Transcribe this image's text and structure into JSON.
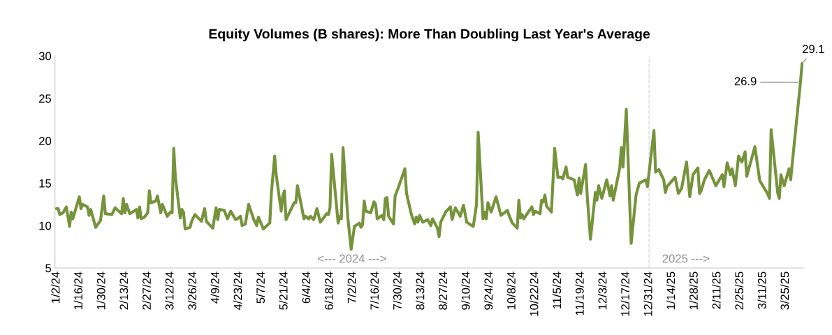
{
  "chart_data": {
    "type": "line",
    "title": "Equity Volumes (B shares): More Than Doubling Last Year's Average",
    "x": [
      "2024-01-02",
      "2024-01-03",
      "2024-01-04",
      "2024-01-06",
      "2024-01-08",
      "2024-01-10",
      "2024-01-11",
      "2024-01-12",
      "2024-01-16",
      "2024-01-17",
      "2024-01-18",
      "2024-01-21",
      "2024-01-22",
      "2024-01-23",
      "2024-01-26",
      "2024-01-29",
      "2024-01-31",
      "2024-02-01",
      "2024-02-05",
      "2024-02-07",
      "2024-02-11",
      "2024-02-12",
      "2024-02-13",
      "2024-02-14",
      "2024-02-16",
      "2024-02-20",
      "2024-02-21",
      "2024-02-22",
      "2024-02-23",
      "2024-02-25",
      "2024-02-27",
      "2024-02-28",
      "2024-02-29",
      "2024-03-03",
      "2024-03-04",
      "2024-03-06",
      "2024-03-07",
      "2024-03-10",
      "2024-03-12",
      "2024-03-13",
      "2024-03-14",
      "2024-03-15",
      "2024-03-18",
      "2024-03-19",
      "2024-03-20",
      "2024-03-21",
      "2024-03-24",
      "2024-03-25",
      "2024-03-27",
      "2024-03-31",
      "2024-04-01",
      "2024-04-02",
      "2024-04-03",
      "2024-04-07",
      "2024-04-09",
      "2024-04-10",
      "2024-04-11",
      "2024-04-14",
      "2024-04-16",
      "2024-04-18",
      "2024-04-21",
      "2024-04-22",
      "2024-04-24",
      "2024-04-25",
      "2024-04-27",
      "2024-04-29",
      "2024-05-02",
      "2024-05-04",
      "2024-05-05",
      "2024-05-07",
      "2024-05-08",
      "2024-05-12",
      "2024-05-13",
      "2024-05-15",
      "2024-05-16",
      "2024-05-19",
      "2024-05-20",
      "2024-05-21",
      "2024-05-22",
      "2024-05-27",
      "2024-05-28",
      "2024-05-29",
      "2024-06-02",
      "2024-06-03",
      "2024-06-05",
      "2024-06-06",
      "2024-06-08",
      "2024-06-10",
      "2024-06-12",
      "2024-06-16",
      "2024-06-17",
      "2024-06-18",
      "2024-06-19",
      "2024-06-23",
      "2024-06-24",
      "2024-06-25",
      "2024-06-26",
      "2024-06-29",
      "2024-07-01",
      "2024-07-03",
      "2024-07-06",
      "2024-07-07",
      "2024-07-08",
      "2024-07-09",
      "2024-07-10",
      "2024-07-13",
      "2024-07-15",
      "2024-07-16",
      "2024-07-17",
      "2024-07-20",
      "2024-07-21",
      "2024-07-22",
      "2024-07-23",
      "2024-07-24",
      "2024-07-27",
      "2024-07-28",
      "2024-07-30",
      "2024-08-03",
      "2024-08-04",
      "2024-08-07",
      "2024-08-09",
      "2024-08-10",
      "2024-08-11",
      "2024-08-12",
      "2024-08-14",
      "2024-08-17",
      "2024-08-19",
      "2024-08-20",
      "2024-08-23",
      "2024-08-24",
      "2024-08-25",
      "2024-08-28",
      "2024-08-31",
      "2024-09-01",
      "2024-09-03",
      "2024-09-06",
      "2024-09-08",
      "2024-09-10",
      "2024-09-14",
      "2024-09-16",
      "2024-09-17",
      "2024-09-20",
      "2024-09-21",
      "2024-09-22",
      "2024-09-23",
      "2024-09-25",
      "2024-09-28",
      "2024-10-01",
      "2024-10-05",
      "2024-10-06",
      "2024-10-08",
      "2024-10-11",
      "2024-10-12",
      "2024-10-13",
      "2024-10-14",
      "2024-10-15",
      "2024-10-20",
      "2024-10-21",
      "2024-10-22",
      "2024-10-25",
      "2024-10-26",
      "2024-10-27",
      "2024-10-28",
      "2024-10-29",
      "2024-11-01",
      "2024-11-03",
      "2024-11-05",
      "2024-11-07",
      "2024-11-08",
      "2024-11-10",
      "2024-11-11",
      "2024-11-15",
      "2024-11-17",
      "2024-11-18",
      "2024-11-19",
      "2024-11-22",
      "2024-11-23",
      "2024-11-25",
      "2024-11-28",
      "2024-11-29",
      "2024-11-30",
      "2024-12-02",
      "2024-12-05",
      "2024-12-07",
      "2024-12-08",
      "2024-12-09",
      "2024-12-13",
      "2024-12-14",
      "2024-12-15",
      "2024-12-17",
      "2024-12-20",
      "2024-12-23",
      "2024-12-25",
      "2024-12-29",
      "2024-12-30",
      "2025-01-03",
      "2025-01-04",
      "2025-01-06",
      "2025-01-09",
      "2025-01-10",
      "2025-01-11",
      "2025-01-16",
      "2025-01-18",
      "2025-01-20",
      "2025-01-23",
      "2025-01-25",
      "2025-01-27",
      "2025-01-30",
      "2025-01-31",
      "2025-02-01",
      "2025-02-03",
      "2025-02-06",
      "2025-02-08",
      "2025-02-10",
      "2025-02-14",
      "2025-02-15",
      "2025-02-17",
      "2025-02-19",
      "2025-02-20",
      "2025-02-22",
      "2025-02-24",
      "2025-02-26",
      "2025-02-28",
      "2025-03-01",
      "2025-03-06",
      "2025-03-09",
      "2025-03-14",
      "2025-03-15",
      "2025-03-16",
      "2025-03-20",
      "2025-03-21",
      "2025-03-22",
      "2025-03-24",
      "2025-03-27",
      "2025-03-28",
      "2025-03-29",
      "2025-04-03",
      "2025-04-04"
    ],
    "series": [
      {
        "color": "#76933c",
        "values": [
          12.0,
          12.0,
          11.3,
          11.5,
          12.2,
          9.9,
          11.6,
          10.8,
          13.4,
          12.0,
          12.5,
          12.2,
          11.2,
          11.9,
          9.8,
          10.6,
          13.5,
          11.4,
          11.3,
          12.1,
          11.4,
          13.2,
          11.5,
          12.5,
          11.4,
          11.9,
          10.9,
          12.2,
          10.8,
          11.0,
          11.5,
          14.1,
          12.7,
          12.9,
          13.5,
          11.5,
          12.5,
          11.1,
          11.6,
          11.5,
          19.1,
          15.7,
          10.9,
          11.9,
          11.6,
          9.6,
          9.8,
          10.5,
          11.3,
          10.5,
          11.3,
          12.0,
          10.5,
          9.7,
          12.1,
          10.7,
          11.9,
          11.8,
          10.8,
          11.7,
          10.7,
          10.8,
          11.1,
          10.0,
          10.2,
          12.5,
          10.8,
          10.0,
          11.0,
          10.1,
          9.6,
          10.3,
          13.9,
          18.2,
          15.9,
          11.7,
          13.5,
          14.1,
          10.7,
          12.7,
          12.7,
          14.7,
          10.8,
          11.1,
          10.8,
          11.1,
          10.7,
          12.0,
          10.4,
          11.4,
          11.3,
          12.1,
          18.4,
          10.3,
          11.1,
          10.8,
          19.2,
          10.8,
          7.2,
          9.9,
          10.3,
          9.8,
          10.1,
          12.9,
          11.7,
          11.5,
          12.8,
          12.5,
          10.8,
          11.2,
          10.7,
          13.2,
          13.3,
          11.1,
          10.2,
          13.5,
          14.5,
          16.7,
          13.8,
          11.3,
          10.2,
          11.0,
          10.4,
          11.2,
          10.4,
          10.7,
          10.0,
          10.8,
          9.7,
          8.7,
          10.4,
          11.6,
          12.2,
          10.7,
          12.1,
          11.1,
          12.4,
          10.4,
          9.9,
          12.5,
          21.0,
          10.8,
          11.6,
          10.8,
          12.7,
          11.6,
          13.4,
          11.2,
          11.8,
          11.2,
          10.3,
          9.7,
          13.0,
          10.9,
          11.3,
          10.8,
          12.2,
          11.3,
          11.7,
          11.4,
          13.0,
          12.8,
          13.6,
          12.3,
          11.6,
          19.1,
          15.7,
          15.7,
          15.5,
          16.9,
          15.7,
          15.4,
          13.6,
          15.6,
          13.8,
          17.2,
          13.5,
          8.4,
          13.9,
          13.0,
          14.7,
          13.2,
          15.4,
          13.5,
          14.7,
          13.0,
          16.8,
          19.2,
          16.9,
          23.7,
          7.9,
          13.6,
          15.0,
          15.4,
          14.6,
          21.2,
          16.3,
          16.6,
          15.4,
          13.9,
          14.6,
          15.7,
          13.8,
          14.4,
          17.5,
          13.4,
          16.0,
          16.8,
          13.8,
          14.1,
          15.4,
          16.5,
          15.6,
          14.7,
          16.0,
          14.6,
          17.4,
          16.0,
          16.7,
          14.7,
          18.2,
          17.5,
          18.7,
          15.8,
          19.3,
          15.3,
          13.7,
          13.2,
          21.3,
          13.9,
          13.2,
          16.0,
          14.7,
          16.7,
          15.4,
          17.4,
          26.9,
          29.1
        ]
      }
    ],
    "xlim": [
      "2024-01-01",
      "2025-04-05"
    ],
    "xticks": [
      {
        "value": "2024-01-02",
        "label": "1/2/24"
      },
      {
        "value": "2024-01-16",
        "label": "1/16/24"
      },
      {
        "value": "2024-01-30",
        "label": "1/30/24"
      },
      {
        "value": "2024-02-13",
        "label": "2/13/24"
      },
      {
        "value": "2024-02-27",
        "label": "2/27/24"
      },
      {
        "value": "2024-03-12",
        "label": "3/12/24"
      },
      {
        "value": "2024-03-26",
        "label": "3/26/24"
      },
      {
        "value": "2024-04-09",
        "label": "4/9/24"
      },
      {
        "value": "2024-04-23",
        "label": "4/23/24"
      },
      {
        "value": "2024-05-07",
        "label": "5/7/24"
      },
      {
        "value": "2024-05-21",
        "label": "5/21/24"
      },
      {
        "value": "2024-06-04",
        "label": "6/4/24"
      },
      {
        "value": "2024-06-18",
        "label": "6/18/24"
      },
      {
        "value": "2024-07-02",
        "label": "7/2/24"
      },
      {
        "value": "2024-07-16",
        "label": "7/16/24"
      },
      {
        "value": "2024-07-30",
        "label": "7/30/24"
      },
      {
        "value": "2024-08-13",
        "label": "8/13/24"
      },
      {
        "value": "2024-08-27",
        "label": "8/27/24"
      },
      {
        "value": "2024-09-10",
        "label": "9/10/24"
      },
      {
        "value": "2024-09-24",
        "label": "9/24/24"
      },
      {
        "value": "2024-10-08",
        "label": "10/8/24"
      },
      {
        "value": "2024-10-22",
        "label": "10/22/24"
      },
      {
        "value": "2024-11-05",
        "label": "11/5/24"
      },
      {
        "value": "2024-11-19",
        "label": "11/19/24"
      },
      {
        "value": "2024-12-03",
        "label": "12/3/24"
      },
      {
        "value": "2024-12-17",
        "label": "12/17/24"
      },
      {
        "value": "2024-12-31",
        "label": "12/31/24"
      },
      {
        "value": "2025-01-14",
        "label": "1/14/25"
      },
      {
        "value": "2025-01-28",
        "label": "1/28/25"
      },
      {
        "value": "2025-02-11",
        "label": "2/11/25"
      },
      {
        "value": "2025-02-25",
        "label": "2/25/25"
      },
      {
        "value": "2025-03-11",
        "label": "3/11/25"
      },
      {
        "value": "2025-03-25",
        "label": "3/25/25"
      }
    ],
    "ylim": [
      5,
      30
    ],
    "yticks": [
      5,
      10,
      15,
      20,
      25,
      30
    ],
    "ref_lines": [
      {
        "axis": "x",
        "value": "2024-12-31",
        "color": "#d9d9d9",
        "line_style": "dashed"
      }
    ],
    "annotations": [
      {
        "text": "26.9",
        "x": "2025-04-03",
        "y": 26.9
      },
      {
        "text": "29.1",
        "x": "2025-04-04",
        "y": 29.1
      },
      "<--- 2024 --->",
      "2025 --->"
    ],
    "grid": false,
    "legend": false,
    "marker": "none",
    "line_style": "solid"
  }
}
